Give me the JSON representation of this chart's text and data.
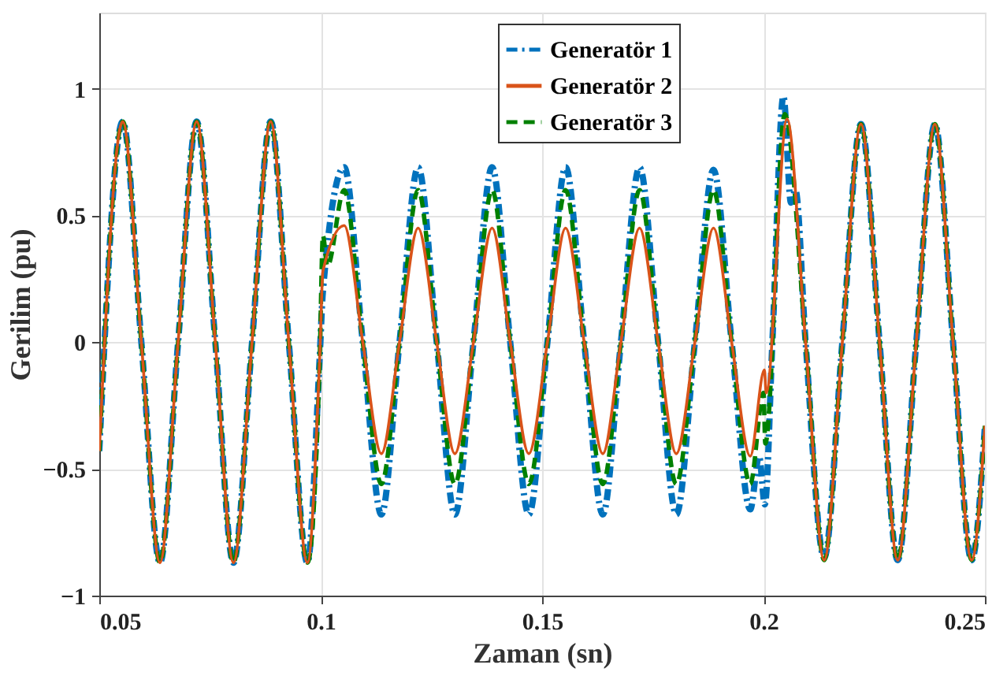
{
  "chart_data": {
    "type": "line",
    "xlabel": "Zaman (sn)",
    "ylabel": "Gerilim (pu)",
    "xlim": [
      0.05,
      0.25
    ],
    "xticks": [
      0.05,
      0.1,
      0.15,
      0.2,
      0.25
    ],
    "ylim": [
      -1,
      1.3
    ],
    "yticks": [
      -1,
      -0.5,
      0,
      0.5,
      1
    ],
    "grid": true,
    "legend": "top right",
    "series": [
      {
        "name": "Generatör 1",
        "color": "#0072bd",
        "line_style": "dashdot",
        "x": [
          0.05,
          0.0553,
          0.0595,
          0.0637,
          0.0678,
          0.072,
          0.0762,
          0.0803,
          0.0845,
          0.0887,
          0.0928,
          0.097,
          0.0998,
          0.1005,
          0.1053,
          0.1095,
          0.1137,
          0.1178,
          0.122,
          0.1262,
          0.1303,
          0.1345,
          0.1387,
          0.1428,
          0.147,
          0.1512,
          0.1553,
          0.1595,
          0.1637,
          0.1678,
          0.172,
          0.1762,
          0.1803,
          0.1845,
          0.1887,
          0.1928,
          0.197,
          0.199,
          0.2003,
          0.202,
          0.2045,
          0.2062,
          0.2072,
          0.2095,
          0.2137,
          0.2178,
          0.222,
          0.2262,
          0.2303,
          0.2345,
          0.2387,
          0.2428,
          0.247,
          0.25
        ],
        "values": [
          -0.43,
          0.87,
          0,
          -0.87,
          0,
          0.87,
          0,
          -0.87,
          0,
          0.87,
          0,
          -0.87,
          -0.05,
          0.2,
          0.69,
          0,
          -0.68,
          0,
          0.69,
          0,
          -0.68,
          0,
          0.69,
          0,
          -0.68,
          0,
          0.69,
          0,
          -0.68,
          0,
          0.69,
          0,
          -0.68,
          0,
          0.68,
          0,
          -0.66,
          -0.45,
          -0.64,
          0,
          0.97,
          0.55,
          0.6,
          0,
          -0.85,
          0,
          0.86,
          0,
          -0.86,
          0,
          0.86,
          0,
          -0.86,
          -0.33
        ]
      },
      {
        "name": "Generatör 2",
        "color": "#d95319",
        "line_style": "solid",
        "x": [
          0.05,
          0.0553,
          0.0595,
          0.0637,
          0.0678,
          0.072,
          0.0762,
          0.0803,
          0.0845,
          0.0887,
          0.0928,
          0.097,
          0.0998,
          0.1005,
          0.1053,
          0.1095,
          0.1137,
          0.1178,
          0.122,
          0.1262,
          0.1303,
          0.1345,
          0.1387,
          0.1428,
          0.147,
          0.1512,
          0.1553,
          0.1595,
          0.1637,
          0.1678,
          0.172,
          0.1762,
          0.1803,
          0.1845,
          0.1887,
          0.1928,
          0.197,
          0.2002,
          0.2006,
          0.2053,
          0.2095,
          0.2137,
          0.2178,
          0.222,
          0.2262,
          0.2303,
          0.2345,
          0.2387,
          0.2428,
          0.247,
          0.25
        ],
        "values": [
          -0.43,
          0.87,
          0,
          -0.87,
          0,
          0.87,
          0,
          -0.87,
          0,
          0.87,
          0,
          -0.87,
          -0.05,
          0.28,
          0.46,
          0,
          -0.44,
          0,
          0.45,
          0,
          -0.44,
          0,
          0.45,
          0,
          -0.44,
          0,
          0.45,
          0,
          -0.44,
          0,
          0.45,
          0,
          -0.44,
          0,
          0.45,
          0,
          -0.45,
          -0.11,
          -0.2,
          0.88,
          0,
          -0.86,
          0,
          0.86,
          0,
          -0.86,
          0,
          0.86,
          0,
          -0.86,
          -0.33
        ]
      },
      {
        "name": "Generatör 3",
        "color": "#008000",
        "line_style": "dashed",
        "x": [
          0.05,
          0.0553,
          0.0595,
          0.0637,
          0.0678,
          0.072,
          0.0762,
          0.0803,
          0.0845,
          0.0887,
          0.0928,
          0.097,
          0.0998,
          0.1005,
          0.1015,
          0.1053,
          0.1095,
          0.1137,
          0.1178,
          0.122,
          0.1262,
          0.1303,
          0.1345,
          0.1387,
          0.1428,
          0.147,
          0.1512,
          0.1553,
          0.1595,
          0.1637,
          0.1678,
          0.172,
          0.1762,
          0.1803,
          0.1845,
          0.1887,
          0.1928,
          0.197,
          0.2,
          0.2004,
          0.2048,
          0.2095,
          0.2137,
          0.2178,
          0.222,
          0.2262,
          0.2303,
          0.2345,
          0.2387,
          0.2428,
          0.247,
          0.25
        ],
        "values": [
          -0.43,
          0.87,
          0,
          -0.87,
          0,
          0.87,
          0,
          -0.87,
          0,
          0.87,
          0,
          -0.87,
          -0.05,
          0.42,
          0.3,
          0.6,
          0,
          -0.56,
          0,
          0.6,
          0,
          -0.56,
          0,
          0.6,
          0,
          -0.56,
          0,
          0.6,
          0,
          -0.56,
          0,
          0.6,
          0,
          -0.56,
          0,
          0.6,
          0,
          -0.56,
          -0.2,
          -0.4,
          0.9,
          0,
          -0.86,
          0,
          0.86,
          0,
          -0.86,
          0,
          0.86,
          0,
          -0.86,
          -0.33
        ]
      }
    ]
  }
}
